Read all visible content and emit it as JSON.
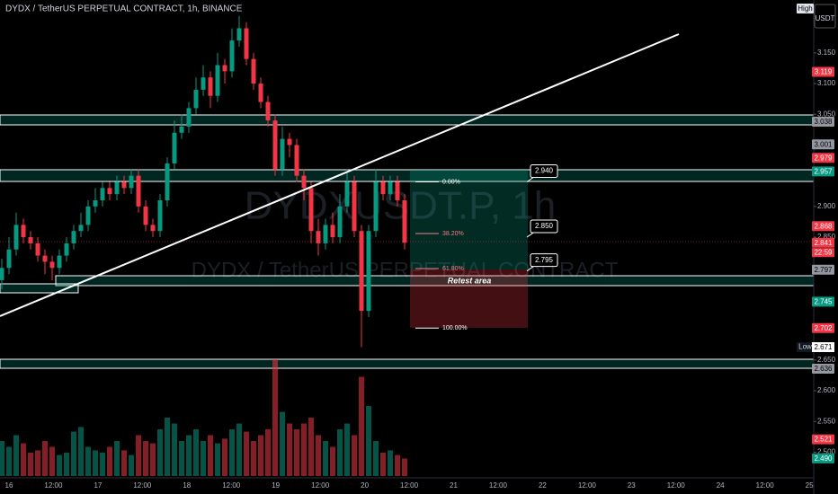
{
  "header": {
    "title": "DYDX / TetherUS PERPETUAL CONTRACT, 1h, BINANCE"
  },
  "chart_data": {
    "type": "candlestick",
    "watermark": [
      "DYDXUSDT.P, 1h",
      "DYDX / TetherUS PERPETUAL CONTRACT"
    ],
    "categories": [
      "16",
      "12:00",
      "17",
      "12:00",
      "18",
      "12:00",
      "19",
      "12:00",
      "20",
      "12:00",
      "21",
      "12:00",
      "22",
      "12:00",
      "23",
      "12:00",
      "24",
      "12:00",
      "25"
    ],
    "open": [
      2.78,
      2.8,
      2.83,
      2.87,
      2.85,
      2.84,
      2.82,
      2.81,
      2.8,
      2.82,
      2.84,
      2.86,
      2.87,
      2.9,
      2.91,
      2.93,
      2.92,
      2.94,
      2.93,
      2.95,
      2.9,
      2.87,
      2.86,
      2.91,
      2.97,
      3.02,
      3.03,
      3.06,
      3.09,
      3.11,
      3.08,
      3.13,
      3.12,
      3.17,
      3.19,
      3.14,
      3.1,
      3.07,
      3.04,
      2.96,
      3.01,
      3.0,
      2.95,
      2.93,
      2.86,
      2.84,
      2.87,
      2.85,
      2.9,
      2.94,
      2.86,
      2.73,
      2.86,
      2.94,
      2.92,
      2.94,
      2.91
    ],
    "high": [
      2.815,
      2.85,
      2.89,
      2.88,
      2.86,
      2.85,
      2.83,
      2.82,
      2.83,
      2.85,
      2.87,
      2.89,
      2.91,
      2.93,
      2.94,
      2.94,
      2.95,
      2.95,
      2.96,
      2.96,
      2.91,
      2.88,
      2.92,
      2.98,
      3.04,
      3.05,
      3.07,
      3.11,
      3.13,
      3.12,
      3.15,
      3.14,
      3.19,
      3.21,
      3.2,
      3.15,
      3.11,
      3.08,
      3.05,
      3.03,
      3.02,
      3.01,
      2.96,
      2.94,
      2.88,
      2.88,
      2.89,
      2.92,
      2.96,
      2.95,
      2.87,
      2.87,
      2.96,
      2.95,
      2.95,
      2.95,
      2.92
    ],
    "low": [
      2.765,
      2.79,
      2.82,
      2.84,
      2.83,
      2.81,
      2.79,
      2.78,
      2.79,
      2.81,
      2.83,
      2.85,
      2.86,
      2.89,
      2.9,
      2.91,
      2.91,
      2.92,
      2.92,
      2.89,
      2.86,
      2.85,
      2.85,
      2.9,
      2.96,
      3.01,
      3.02,
      3.05,
      3.08,
      3.06,
      3.07,
      3.1,
      3.11,
      3.16,
      3.13,
      3.09,
      3.06,
      3.03,
      2.95,
      2.95,
      2.98,
      2.94,
      2.91,
      2.84,
      2.82,
      2.83,
      2.84,
      2.84,
      2.89,
      2.85,
      2.671,
      2.72,
      2.85,
      2.91,
      2.91,
      2.9,
      2.83
    ],
    "close": [
      2.8,
      2.83,
      2.87,
      2.85,
      2.84,
      2.82,
      2.81,
      2.8,
      2.82,
      2.84,
      2.86,
      2.87,
      2.9,
      2.91,
      2.93,
      2.92,
      2.94,
      2.93,
      2.95,
      2.9,
      2.87,
      2.86,
      2.91,
      2.97,
      3.02,
      3.03,
      3.06,
      3.09,
      3.11,
      3.08,
      3.13,
      3.12,
      3.17,
      3.19,
      3.14,
      3.1,
      3.07,
      3.04,
      2.96,
      3.01,
      3.0,
      2.95,
      2.93,
      2.86,
      2.84,
      2.87,
      2.85,
      2.9,
      2.94,
      2.86,
      2.73,
      2.86,
      2.94,
      2.92,
      2.94,
      2.91,
      2.841
    ],
    "volume": [
      30,
      25,
      35,
      28,
      20,
      22,
      30,
      25,
      18,
      20,
      38,
      42,
      25,
      22,
      20,
      25,
      30,
      22,
      18,
      35,
      30,
      28,
      40,
      50,
      45,
      30,
      35,
      40,
      30,
      35,
      28,
      32,
      40,
      45,
      38,
      30,
      35,
      40,
      100,
      55,
      45,
      40,
      45,
      50,
      35,
      30,
      25,
      40,
      45,
      35,
      85,
      60,
      30,
      20,
      22,
      18,
      15
    ],
    "up_color": "#089981",
    "down_color": "#f23645",
    "ylim": [
      2.432,
      3.236
    ],
    "yticks": [
      {
        "value": 3.15,
        "label": "3.150"
      },
      {
        "value": 3.1,
        "label": "3.100"
      },
      {
        "value": 3.05,
        "label": "3.050"
      },
      {
        "value": 2.9,
        "label": "2.900"
      },
      {
        "value": 2.85,
        "label": "2.850"
      },
      {
        "value": 2.65,
        "label": "2.650"
      },
      {
        "value": 2.6,
        "label": "2.600"
      },
      {
        "value": 2.55,
        "label": "2.550"
      },
      {
        "value": 2.5,
        "label": "2.500"
      }
    ],
    "price_tags": [
      {
        "value": 3.119,
        "label": "3.119",
        "color": "#f23645"
      },
      {
        "value": 3.038,
        "label": "3.038",
        "color": "#9598a1"
      },
      {
        "value": 3.001,
        "label": "3.001",
        "color": "#9598a1"
      },
      {
        "value": 2.979,
        "label": "2.979",
        "color": "#f23645"
      },
      {
        "value": 2.957,
        "label": "2.957",
        "color": "#089981"
      },
      {
        "value": 2.868,
        "label": "2.868",
        "color": "#f23645"
      },
      {
        "value": 2.841,
        "label": "2.841",
        "color": "#f23645"
      },
      {
        "value": 2.797,
        "label": "2.797",
        "color": "#9598a1"
      },
      {
        "value": 2.745,
        "label": "2.745",
        "color": "#089981"
      },
      {
        "value": 2.702,
        "label": "2.702",
        "color": "#f23645"
      },
      {
        "value": 2.636,
        "label": "2.636",
        "color": "#9598a1"
      },
      {
        "value": 2.521,
        "label": "2.521",
        "color": "#f23645"
      },
      {
        "value": 2.49,
        "label": "2.490",
        "color": "#089981"
      }
    ],
    "countdown": "22:59",
    "high_label": "High",
    "currency": "USDT",
    "low_label": {
      "label": "Low",
      "value": 2.671
    },
    "fib": [
      {
        "label": "0.00%",
        "value": 2.94,
        "color": "#ffffff"
      },
      {
        "label": "38.20%",
        "value": 2.856,
        "color": "#f77c80"
      },
      {
        "label": "61.80%",
        "value": 2.799,
        "color": "#f77c80"
      },
      {
        "label": "100.00%",
        "value": 2.702,
        "color": "#ffffff"
      }
    ],
    "targets": [
      {
        "value": 2.94,
        "label": "2.940"
      },
      {
        "value": 2.85,
        "label": "2.850"
      },
      {
        "value": 2.795,
        "label": "2.795"
      }
    ],
    "annotation": "Retest area"
  }
}
